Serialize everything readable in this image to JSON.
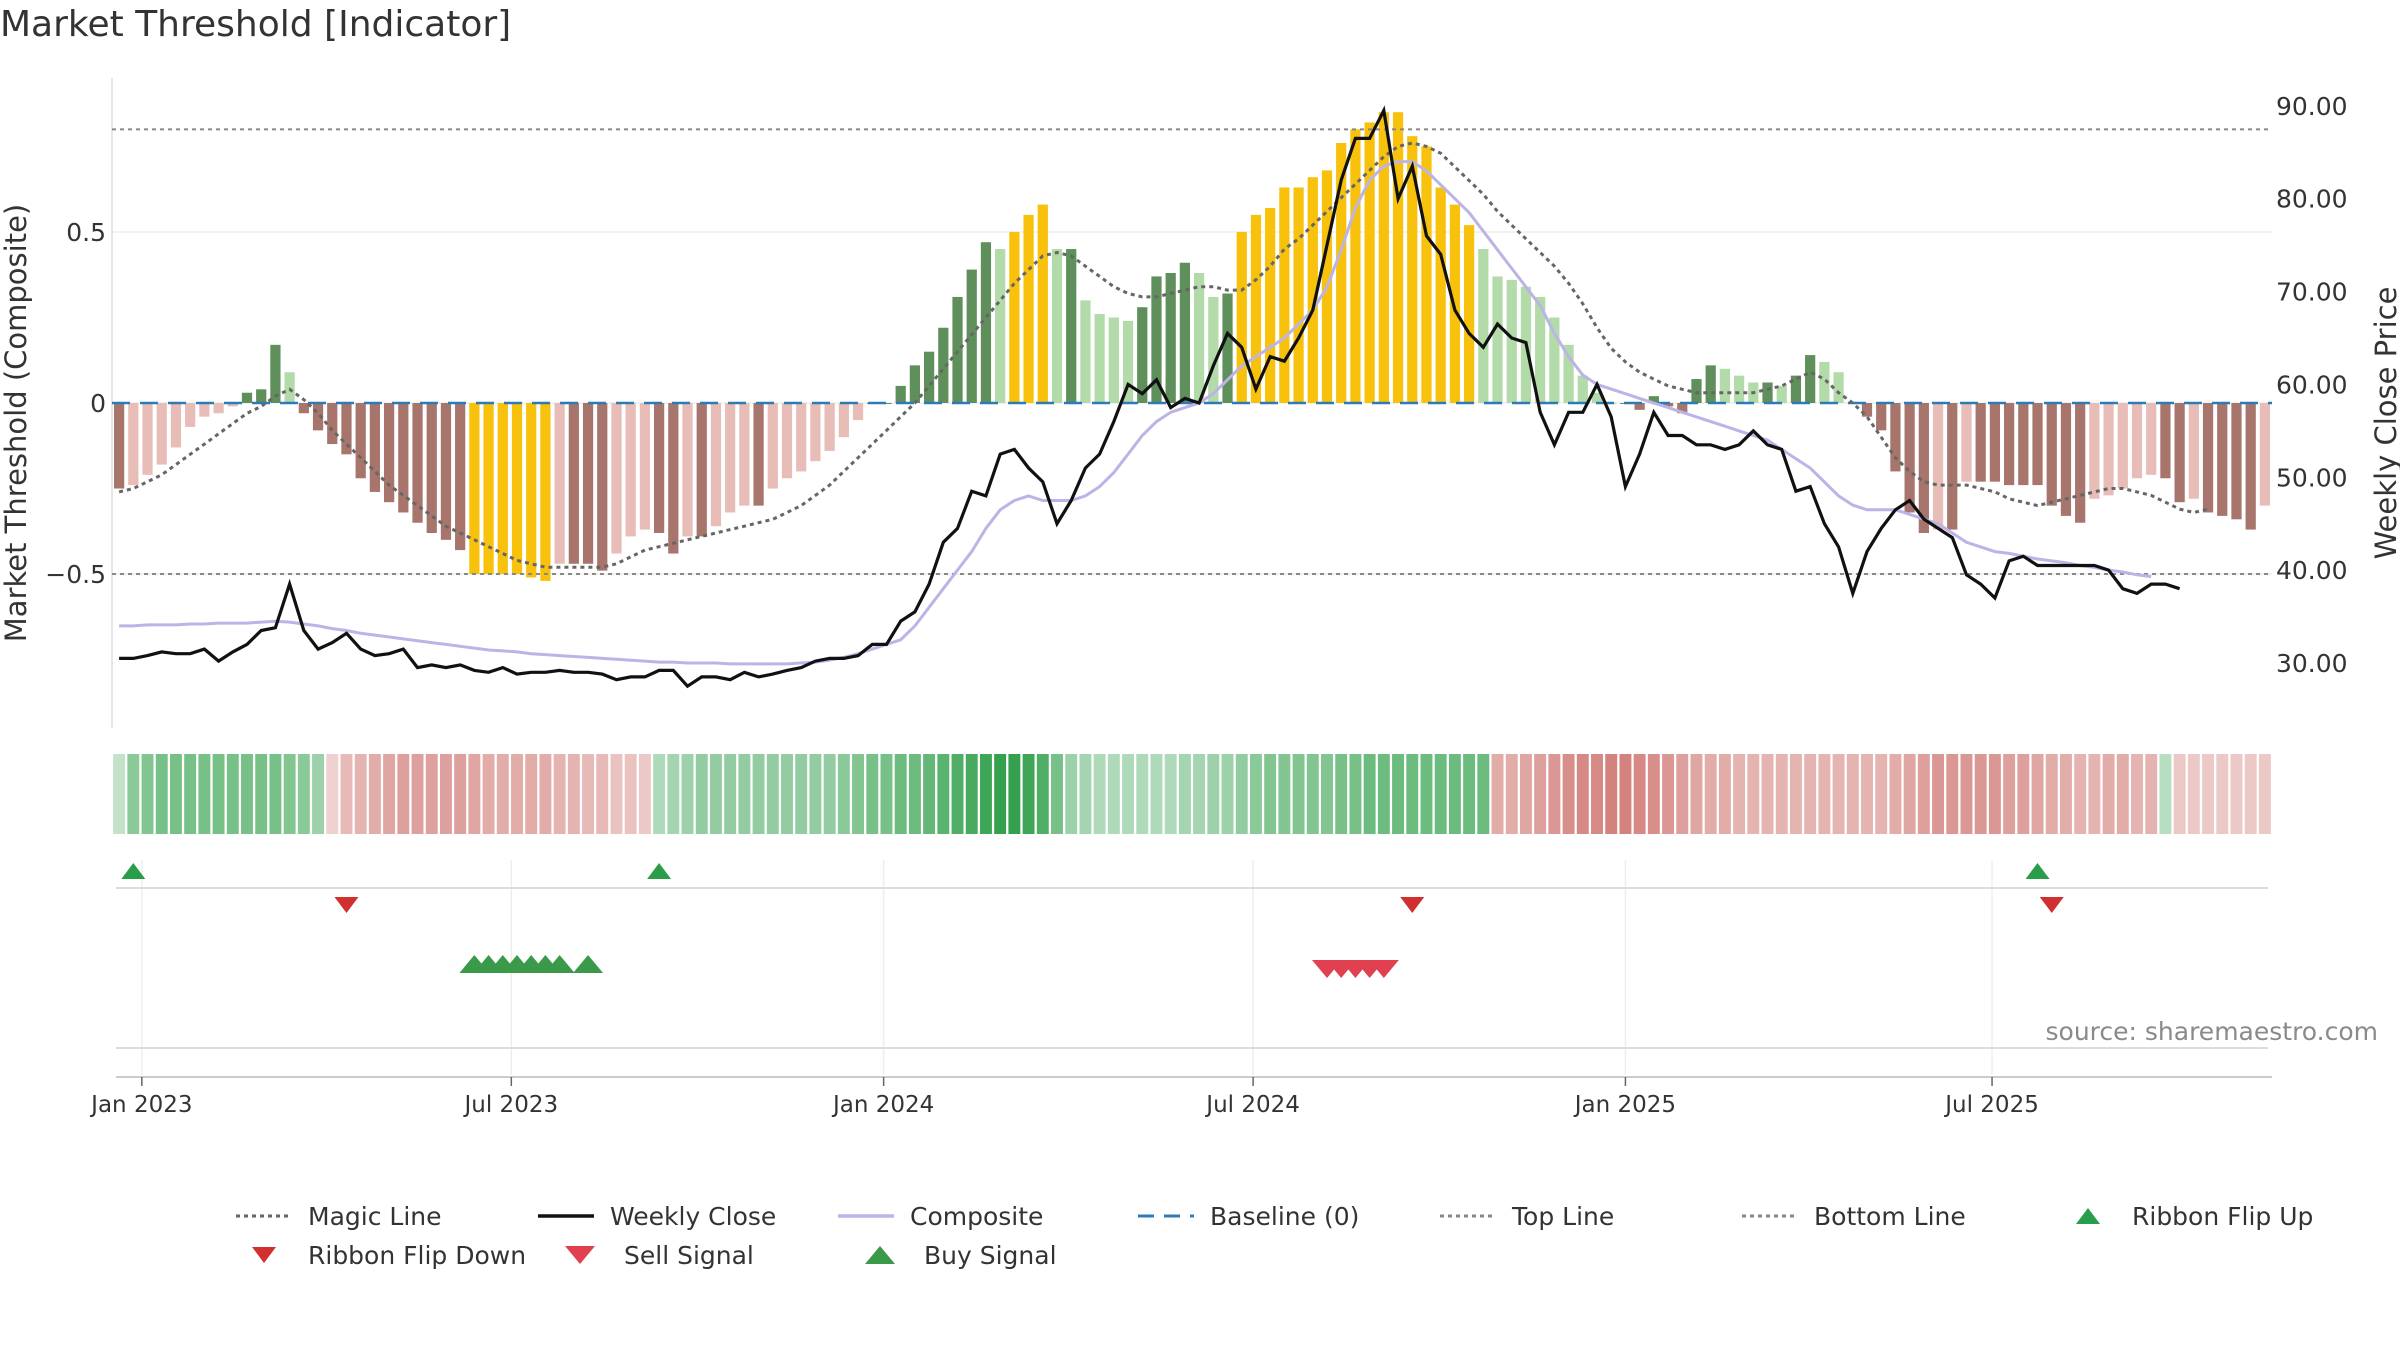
{
  "chart_data": {
    "type": "bar",
    "title": "Market Threshold [Indicator]",
    "ylabel": "Market Threshold (Composite)",
    "ylabel_right": "Weekly Close Price",
    "source_text": "source: sharemaestro.com",
    "ylim": [
      -0.95,
      0.95
    ],
    "ylim_right": [
      23,
      93
    ],
    "y_ticks": [
      {
        "value": 0.5,
        "label": "0.5"
      },
      {
        "value": 0,
        "label": "0"
      },
      {
        "value": -0.5,
        "label": "−0.5"
      }
    ],
    "y_ticks_right": [
      {
        "value": 90,
        "label": "90.00"
      },
      {
        "value": 80,
        "label": "80.00"
      },
      {
        "value": 70,
        "label": "70.00"
      },
      {
        "value": 60,
        "label": "60.00"
      },
      {
        "value": 50,
        "label": "50.00"
      },
      {
        "value": 40,
        "label": "40.00"
      },
      {
        "value": 30,
        "label": "30.00"
      }
    ],
    "x_ticks": [
      {
        "week": 1.6,
        "label": "Jan 2023"
      },
      {
        "week": 27.6,
        "label": "Jul 2023"
      },
      {
        "week": 53.8,
        "label": "Jan 2024"
      },
      {
        "week": 79.8,
        "label": "Jul 2024"
      },
      {
        "week": 106.0,
        "label": "Jan 2025"
      },
      {
        "week": 131.8,
        "label": "Jul 2025"
      }
    ],
    "top_line": 0.8,
    "bottom_line": -0.5,
    "baseline": 0,
    "composite": [
      -0.25,
      -0.24,
      -0.21,
      -0.18,
      -0.13,
      -0.07,
      -0.04,
      -0.03,
      -0.01,
      0.03,
      0.04,
      0.17,
      0.09,
      -0.03,
      -0.08,
      -0.12,
      -0.15,
      -0.22,
      -0.26,
      -0.29,
      -0.32,
      -0.35,
      -0.38,
      -0.4,
      -0.43,
      -0.5,
      -0.5,
      -0.5,
      -0.5,
      -0.51,
      -0.52,
      -0.47,
      -0.47,
      -0.47,
      -0.49,
      -0.44,
      -0.39,
      -0.37,
      -0.38,
      -0.44,
      -0.39,
      -0.39,
      -0.36,
      -0.32,
      -0.3,
      -0.3,
      -0.25,
      -0.22,
      -0.2,
      -0.17,
      -0.14,
      -0.1,
      -0.05,
      0.0,
      0.0,
      0.05,
      0.11,
      0.15,
      0.22,
      0.31,
      0.39,
      0.47,
      0.45,
      0.5,
      0.55,
      0.58,
      0.45,
      0.45,
      0.3,
      0.26,
      0.25,
      0.24,
      0.28,
      0.37,
      0.38,
      0.41,
      0.38,
      0.31,
      0.32,
      0.5,
      0.55,
      0.57,
      0.63,
      0.63,
      0.66,
      0.68,
      0.76,
      0.8,
      0.82,
      0.85,
      0.85,
      0.78,
      0.75,
      0.63,
      0.58,
      0.52,
      0.45,
      0.37,
      0.36,
      0.34,
      0.31,
      0.25,
      0.17,
      0.08,
      0.03,
      0.0,
      0.0,
      -0.02,
      0.02,
      -0.01,
      -0.03,
      0.07,
      0.11,
      0.1,
      0.08,
      0.06,
      0.06,
      0.05,
      0.08,
      0.14,
      0.12,
      0.09,
      0.0,
      -0.04,
      -0.08,
      -0.2,
      -0.32,
      -0.38,
      -0.37,
      -0.37,
      -0.23,
      -0.23,
      -0.23,
      -0.24,
      -0.24,
      -0.24,
      -0.3,
      -0.33,
      -0.35,
      -0.28,
      -0.27,
      -0.25,
      -0.22,
      -0.21,
      -0.22,
      -0.29,
      -0.28,
      -0.32,
      -0.33,
      -0.34,
      -0.37,
      -0.3
    ],
    "weekly_close": [
      30.5,
      30.5,
      30.8,
      31.2,
      31.0,
      31.0,
      31.5,
      30.2,
      31.2,
      32.0,
      33.5,
      33.8,
      38.5,
      33.5,
      31.5,
      32.2,
      33.2,
      31.5,
      30.8,
      31.0,
      31.5,
      29.5,
      29.8,
      29.5,
      29.8,
      29.2,
      29.0,
      29.5,
      28.8,
      29.0,
      29.0,
      29.2,
      29.0,
      29.0,
      28.8,
      28.2,
      28.5,
      28.5,
      29.2,
      29.2,
      27.5,
      28.5,
      28.5,
      28.2,
      29.0,
      28.5,
      28.8,
      29.2,
      29.5,
      30.2,
      30.5,
      30.5,
      30.8,
      32.0,
      32.0,
      34.5,
      35.5,
      38.5,
      43.0,
      44.5,
      48.5,
      48.0,
      52.5,
      53.0,
      51.0,
      49.5,
      45.0,
      47.5,
      51.0,
      52.5,
      56.0,
      60.0,
      59.0,
      60.5,
      57.5,
      58.5,
      58.0,
      62.0,
      65.5,
      64.0,
      59.5,
      63.0,
      62.5,
      65.0,
      68.0,
      75.0,
      82.0,
      86.5,
      86.5,
      89.5,
      80.0,
      83.5,
      76.0,
      74.0,
      68.0,
      65.5,
      64.0,
      66.5,
      65.0,
      64.5,
      57.0,
      53.5,
      57.0,
      57.0,
      60.0,
      56.5,
      49.0,
      52.5,
      57.0,
      54.5,
      54.5,
      53.5,
      53.5,
      53.0,
      53.5,
      55.0,
      53.5,
      53.0,
      48.5,
      49.0,
      45.0,
      42.5,
      37.5,
      42.0,
      44.5,
      46.5,
      47.5,
      45.5,
      44.5,
      43.5,
      39.5,
      38.5,
      37.0,
      41.0,
      41.5,
      40.5,
      40.5,
      40.5,
      40.5,
      40.5,
      40.0,
      38.0,
      37.5,
      38.5,
      38.5,
      38.0
    ],
    "composite_ma": [
      34.0,
      34.0,
      34.1,
      34.1,
      34.1,
      34.2,
      34.2,
      34.3,
      34.3,
      34.3,
      34.4,
      34.5,
      34.4,
      34.2,
      34.0,
      33.7,
      33.5,
      33.2,
      33.0,
      32.8,
      32.6,
      32.4,
      32.2,
      32.0,
      31.8,
      31.6,
      31.4,
      31.3,
      31.2,
      31.0,
      30.9,
      30.8,
      30.7,
      30.6,
      30.5,
      30.4,
      30.3,
      30.2,
      30.1,
      30.1,
      30.0,
      30.0,
      30.0,
      29.9,
      29.9,
      29.9,
      29.9,
      29.9,
      30.0,
      30.1,
      30.3,
      30.6,
      31.0,
      31.5,
      32.0,
      32.5,
      34.0,
      36.0,
      38.0,
      40.0,
      42.0,
      44.5,
      46.5,
      47.5,
      48.0,
      47.5,
      47.5,
      47.5,
      48.0,
      49.0,
      50.5,
      52.5,
      54.5,
      56.0,
      57.0,
      57.5,
      58.0,
      59.0,
      60.5,
      62.0,
      63.0,
      64.0,
      65.0,
      66.5,
      68.0,
      70.5,
      74.5,
      79.0,
      82.0,
      83.5,
      84.0,
      84.0,
      83.0,
      81.5,
      80.0,
      78.5,
      76.5,
      74.5,
      72.5,
      70.5,
      68.5,
      65.5,
      63.0,
      61.0,
      60.0,
      59.5,
      59.0,
      58.5,
      58.0,
      57.5,
      57.0,
      56.5,
      56.0,
      55.5,
      55.0,
      54.5,
      54.0,
      53.0,
      52.0,
      51.0,
      49.5,
      48.0,
      47.0,
      46.5,
      46.5,
      46.5,
      46.0,
      45.5,
      45.0,
      44.0,
      43.0,
      42.5,
      42.0,
      41.8,
      41.5,
      41.2,
      41.0,
      40.8,
      40.5,
      40.3,
      40.0,
      39.8,
      39.5,
      39.3
    ],
    "magic_line": [
      -0.26,
      -0.25,
      -0.23,
      -0.21,
      -0.18,
      -0.15,
      -0.12,
      -0.09,
      -0.06,
      -0.03,
      -0.01,
      0.02,
      0.04,
      0.01,
      -0.03,
      -0.08,
      -0.12,
      -0.16,
      -0.2,
      -0.24,
      -0.27,
      -0.3,
      -0.33,
      -0.36,
      -0.38,
      -0.4,
      -0.42,
      -0.44,
      -0.46,
      -0.47,
      -0.48,
      -0.48,
      -0.48,
      -0.48,
      -0.48,
      -0.47,
      -0.45,
      -0.43,
      -0.42,
      -0.41,
      -0.4,
      -0.39,
      -0.38,
      -0.37,
      -0.36,
      -0.35,
      -0.34,
      -0.32,
      -0.3,
      -0.27,
      -0.24,
      -0.2,
      -0.16,
      -0.12,
      -0.08,
      -0.04,
      0.0,
      0.05,
      0.1,
      0.15,
      0.2,
      0.25,
      0.3,
      0.35,
      0.39,
      0.43,
      0.44,
      0.43,
      0.4,
      0.37,
      0.34,
      0.32,
      0.31,
      0.31,
      0.32,
      0.33,
      0.34,
      0.34,
      0.33,
      0.33,
      0.36,
      0.4,
      0.45,
      0.48,
      0.52,
      0.56,
      0.6,
      0.64,
      0.68,
      0.72,
      0.75,
      0.76,
      0.75,
      0.73,
      0.69,
      0.65,
      0.61,
      0.56,
      0.52,
      0.48,
      0.44,
      0.4,
      0.35,
      0.29,
      0.22,
      0.16,
      0.12,
      0.09,
      0.07,
      0.05,
      0.04,
      0.03,
      0.03,
      0.03,
      0.03,
      0.03,
      0.04,
      0.05,
      0.07,
      0.09,
      0.07,
      0.03,
      0.0,
      -0.04,
      -0.1,
      -0.16,
      -0.2,
      -0.23,
      -0.24,
      -0.24,
      -0.24,
      -0.25,
      -0.26,
      -0.28,
      -0.29,
      -0.3,
      -0.29,
      -0.28,
      -0.27,
      -0.26,
      -0.25,
      -0.25,
      -0.26,
      -0.27,
      -0.29,
      -0.31,
      -0.32,
      -0.31
    ],
    "ribbon_strength": [
      0.1,
      0.4,
      0.45,
      0.5,
      0.5,
      0.5,
      0.5,
      0.5,
      0.5,
      0.5,
      0.5,
      0.5,
      0.45,
      0.4,
      0.3,
      -0.1,
      -0.25,
      -0.3,
      -0.35,
      -0.4,
      -0.45,
      -0.45,
      -0.45,
      -0.45,
      -0.45,
      -0.4,
      -0.35,
      -0.35,
      -0.35,
      -0.35,
      -0.35,
      -0.3,
      -0.3,
      -0.25,
      -0.25,
      -0.2,
      -0.2,
      -0.15,
      0.2,
      0.25,
      0.3,
      0.35,
      0.35,
      0.35,
      0.35,
      0.35,
      0.35,
      0.35,
      0.35,
      0.35,
      0.35,
      0.4,
      0.45,
      0.5,
      0.5,
      0.55,
      0.55,
      0.6,
      0.65,
      0.7,
      0.75,
      0.8,
      0.85,
      0.85,
      0.8,
      0.7,
      0.5,
      0.3,
      0.25,
      0.2,
      0.2,
      0.2,
      0.2,
      0.2,
      0.2,
      0.25,
      0.25,
      0.3,
      0.3,
      0.35,
      0.4,
      0.45,
      0.45,
      0.45,
      0.45,
      0.45,
      0.5,
      0.5,
      0.55,
      0.55,
      0.55,
      0.55,
      0.55,
      0.55,
      0.55,
      0.55,
      0.55,
      -0.35,
      -0.35,
      -0.4,
      -0.45,
      -0.5,
      -0.55,
      -0.6,
      -0.6,
      -0.65,
      -0.65,
      -0.6,
      -0.55,
      -0.5,
      -0.45,
      -0.4,
      -0.35,
      -0.35,
      -0.3,
      -0.3,
      -0.3,
      -0.3,
      -0.3,
      -0.3,
      -0.3,
      -0.3,
      -0.3,
      -0.3,
      -0.3,
      -0.35,
      -0.4,
      -0.45,
      -0.5,
      -0.5,
      -0.5,
      -0.5,
      -0.5,
      -0.45,
      -0.45,
      -0.4,
      -0.35,
      -0.35,
      -0.3,
      -0.3,
      -0.35,
      -0.35,
      -0.3,
      -0.3,
      0.15,
      -0.15,
      -0.15,
      -0.15,
      -0.15,
      -0.15,
      -0.15,
      -0.15
    ],
    "ribbon_flip_up_weeks": [
      1,
      38,
      135
    ],
    "ribbon_flip_down_weeks": [
      16,
      91,
      136
    ],
    "buy_signal_weeks": [
      25,
      26,
      27,
      28,
      29,
      30,
      31,
      33
    ],
    "sell_signal_weeks": [
      85,
      86,
      87,
      88,
      89
    ],
    "legend": [
      {
        "key": "magic",
        "label": "Magic Line",
        "style": "dotted-line",
        "color": "#666666"
      },
      {
        "key": "close",
        "label": "Weekly Close",
        "style": "solid-line",
        "color": "#111111"
      },
      {
        "key": "composite",
        "label": "Composite",
        "style": "solid-line",
        "color": "#bcb4e6"
      },
      {
        "key": "baseline",
        "label": "Baseline (0)",
        "style": "dashed-line",
        "color": "#2c7bb6"
      },
      {
        "key": "top",
        "label": "Top Line",
        "style": "dotted-line",
        "color": "#888888"
      },
      {
        "key": "bottom",
        "label": "Bottom Line",
        "style": "dotted-line",
        "color": "#888888"
      },
      {
        "key": "flipup",
        "label": "Ribbon Flip Up",
        "style": "triangle-up",
        "color": "#2a9d4a"
      },
      {
        "key": "flipdown",
        "label": "Ribbon Flip Down",
        "style": "triangle-down",
        "color": "#d03030"
      },
      {
        "key": "sell",
        "label": "Sell Signal",
        "style": "triangle-down",
        "color": "#e04050"
      },
      {
        "key": "buy",
        "label": "Buy Signal",
        "style": "triangle-up",
        "color": "#3a9a4a"
      }
    ],
    "colors": {
      "bar_strong_up": "#5f8f5a",
      "bar_weak_up": "#b3dbaa",
      "bar_strong_down": "#a8756d",
      "bar_weak_down": "#e8bdb8",
      "bar_extreme": "#f8c20c",
      "ribbon_up": "#2e9e48",
      "ribbon_down": "#c8605a",
      "flip_up": "#2a9d4a",
      "flip_down": "#d03030",
      "buy": "#3a9a4a",
      "sell": "#e04050"
    }
  }
}
